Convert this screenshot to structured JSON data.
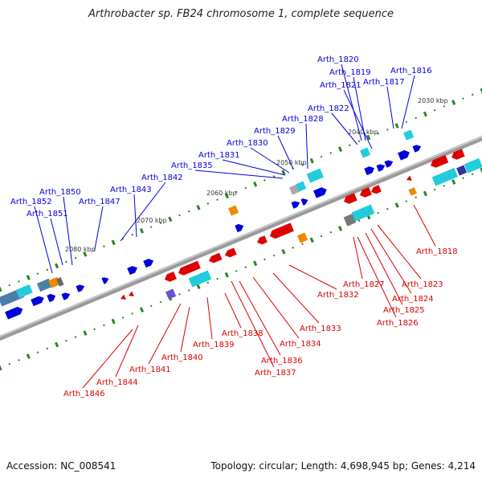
{
  "title": "Arthrobacter sp. FB24 chromosome 1, complete sequence",
  "footer": {
    "accession": "Accession: NC_008541",
    "summary": "Topology: circular; Length: 4,698,945 bp; Genes: 4,214"
  },
  "colors": {
    "forward_gene": "#0000dd",
    "reverse_gene": "#dd0000",
    "rna_cyan": "#22ccdd",
    "orange": "#ee8800",
    "tick": "#228822",
    "backbone": "#888888"
  },
  "ticks": [
    "2030 kbp",
    "2040 kbp",
    "2050 kbp",
    "2060 kbp",
    "2070 kbp",
    "2080 kbp"
  ],
  "labels_forward": [
    "Arth_1820",
    "Arth_1819",
    "Arth_1821",
    "Arth_1817",
    "Arth_1816",
    "Arth_1822",
    "Arth_1828",
    "Arth_1829",
    "Arth_1830",
    "Arth_1831",
    "Arth_1835",
    "Arth_1842",
    "Arth_1843",
    "Arth_1850",
    "Arth_1852",
    "Arth_1847",
    "Arth_1851"
  ],
  "labels_reverse": [
    "Arth_1818",
    "Arth_1827",
    "Arth_1823",
    "Arth_1832",
    "Arth_1824",
    "Arth_1825",
    "Arth_1826",
    "Arth_1833",
    "Arth_1838",
    "Arth_1839",
    "Arth_1834",
    "Arth_1840",
    "Arth_1836",
    "Arth_1837",
    "Arth_1841",
    "Arth_1844",
    "Arth_1846"
  ]
}
